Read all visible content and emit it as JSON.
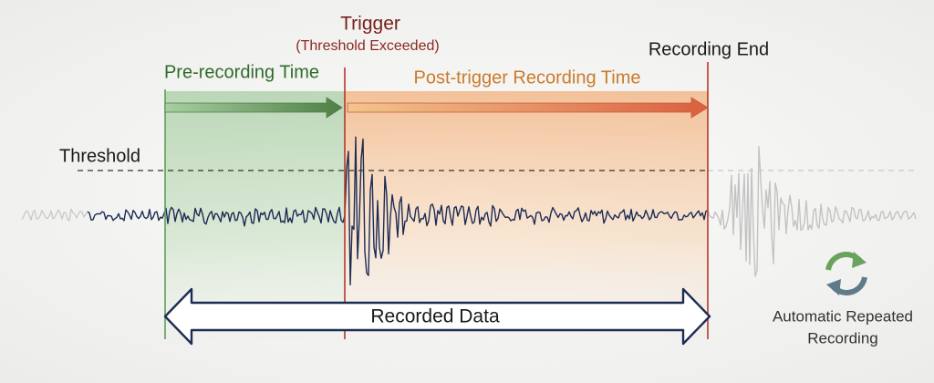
{
  "labels": {
    "trigger": "Trigger",
    "trigger_note": "(Threshold Exceeded)",
    "recording_end": "Recording End",
    "pre_recording": "Pre-recording Time",
    "post_trigger": "Post-trigger Recording Time",
    "threshold": "Threshold",
    "recorded_data": "Recorded Data",
    "repeat": [
      "Automatic Repeated",
      "Recording"
    ]
  }
}
